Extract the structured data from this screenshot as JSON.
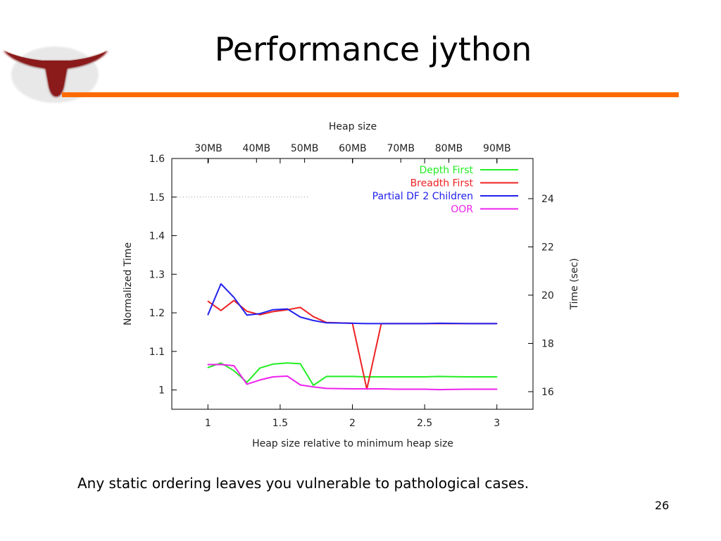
{
  "slide": {
    "title": "Performance jython",
    "caption": "Any static ordering leaves you vulnerable to pathological cases.",
    "page_number": "26"
  },
  "colors": {
    "accent_rule": "#ff6a00",
    "logo": "#8b1a1a"
  },
  "icons": {
    "logo": "longhorn-logo-icon"
  },
  "chart_data": {
    "type": "line",
    "title": "",
    "xlabel": "Heap size relative to minimum heap size",
    "ylabel": "Normalized Time",
    "xlim": [
      0.75,
      3.25
    ],
    "ylim": [
      0.95,
      1.6
    ],
    "x_ticks": [
      1,
      1.5,
      2,
      2.5,
      3
    ],
    "x_tick_labels": [
      "1",
      "1.5",
      "2",
      "2.5",
      "3"
    ],
    "y_ticks": [
      1,
      1.1,
      1.2,
      1.3,
      1.4,
      1.5,
      1.6
    ],
    "y_tick_labels": [
      "1",
      "1.1",
      "1.2",
      "1.3",
      "1.4",
      "1.5",
      "1.6"
    ],
    "top_axis": {
      "label": "Heap size",
      "tick_labels": [
        "30MB",
        "40MB",
        "50MB",
        "60MB",
        "70MB",
        "80MB",
        "90MB"
      ]
    },
    "right_axis": {
      "label": "Time (sec)",
      "tick_labels": [
        "16",
        "18",
        "20",
        "22",
        "24"
      ]
    },
    "grid": true,
    "legend_position": "top-right",
    "series": [
      {
        "name": "Depth First",
        "color": "#22ee22",
        "x": [
          1,
          1.09,
          1.18,
          1.27,
          1.36,
          1.45,
          1.55,
          1.64,
          1.73,
          1.82,
          2.0,
          2.1,
          2.2,
          2.3,
          2.5,
          2.6,
          2.8,
          3.0
        ],
        "y": [
          1.058,
          1.07,
          1.05,
          1.02,
          1.057,
          1.067,
          1.07,
          1.068,
          1.012,
          1.035,
          1.035,
          1.034,
          1.034,
          1.034,
          1.034,
          1.035,
          1.034,
          1.034
        ]
      },
      {
        "name": "Breadth First",
        "color": "#ee2222",
        "x": [
          1,
          1.09,
          1.18,
          1.27,
          1.36,
          1.45,
          1.55,
          1.64,
          1.73,
          1.82,
          1.9,
          2.0,
          2.1,
          2.2,
          2.3,
          2.5,
          2.6,
          2.8,
          3.0
        ],
        "y": [
          1.23,
          1.206,
          1.232,
          1.204,
          1.195,
          1.203,
          1.208,
          1.214,
          1.19,
          1.175,
          1.174,
          1.173,
          1.002,
          1.172,
          1.172,
          1.172,
          1.172,
          1.172,
          1.172
        ]
      },
      {
        "name": "Partial DF 2 Children",
        "color": "#2222ee",
        "x": [
          1,
          1.09,
          1.18,
          1.27,
          1.36,
          1.45,
          1.55,
          1.64,
          1.73,
          1.82,
          2.0,
          2.1,
          2.2,
          2.3,
          2.5,
          2.6,
          2.8,
          3.0
        ],
        "y": [
          1.195,
          1.275,
          1.24,
          1.194,
          1.198,
          1.208,
          1.21,
          1.189,
          1.18,
          1.174,
          1.173,
          1.172,
          1.172,
          1.172,
          1.172,
          1.173,
          1.172,
          1.172
        ]
      },
      {
        "name": "OOR",
        "color": "#ee22ee",
        "x": [
          1,
          1.09,
          1.18,
          1.27,
          1.36,
          1.45,
          1.55,
          1.64,
          1.73,
          1.82,
          2.0,
          2.1,
          2.2,
          2.3,
          2.5,
          2.6,
          2.8,
          3.0
        ],
        "y": [
          1.066,
          1.066,
          1.063,
          1.015,
          1.026,
          1.034,
          1.036,
          1.013,
          1.008,
          1.004,
          1.003,
          1.003,
          1.003,
          1.002,
          1.002,
          1.001,
          1.002,
          1.002
        ]
      }
    ]
  }
}
